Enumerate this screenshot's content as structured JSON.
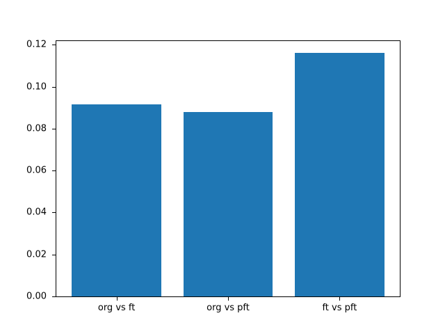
{
  "figure": {
    "background": "#ffffff"
  },
  "chart_data": {
    "type": "bar",
    "title": "",
    "xlabel": "",
    "ylabel": "",
    "categories": [
      "org vs ft",
      "org vs pft",
      "ft vs pft"
    ],
    "values": [
      0.0915,
      0.0878,
      0.116
    ],
    "bar_color": "#1f77b4",
    "bar_width_fraction": 0.8,
    "ylim": [
      0,
      0.1218
    ],
    "yticks": [
      0.0,
      0.02,
      0.04,
      0.06,
      0.08,
      0.1,
      0.12
    ],
    "ytick_labels": [
      "0.00",
      "0.02",
      "0.04",
      "0.06",
      "0.08",
      "0.10",
      "0.12"
    ],
    "grid": false,
    "legend_position": "none",
    "axis_color": "#000000",
    "tick_label_color": "#000000"
  }
}
